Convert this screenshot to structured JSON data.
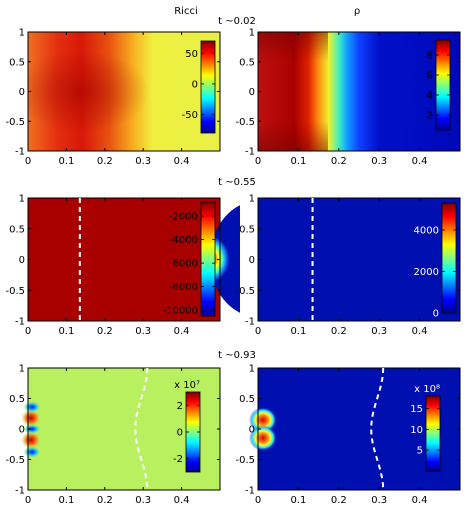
{
  "chart_data": {
    "type": "heatmap",
    "column_titles": [
      "Ricci",
      "ρ"
    ],
    "time_labels": [
      "t ~0.02",
      "t ~0.55",
      "t ~0.93"
    ],
    "colormap": "jet",
    "xlim": [
      0,
      0.5
    ],
    "ylim": [
      -1,
      1
    ],
    "x_ticks": [
      0,
      0.1,
      0.2,
      0.3,
      0.4
    ],
    "y_ticks": [
      -1,
      -0.5,
      0,
      0.5,
      1
    ],
    "panels": [
      {
        "id": "ricci-t1",
        "title": "Ricci",
        "field": "Ricci",
        "colorbar": {
          "min": -80,
          "max": 70,
          "ticks": [
            50,
            0,
            -50
          ],
          "tick_labels": [
            "50",
            "0",
            "-50"
          ],
          "scale_label": "",
          "label_color": "#000000"
        },
        "boundary_line": null
      },
      {
        "id": "rho-t1",
        "title": "ρ",
        "field": "ρ",
        "colorbar": {
          "min": 0.5,
          "max": 9.5,
          "ticks": [
            8,
            6,
            4,
            2
          ],
          "tick_labels": [
            "8",
            "6",
            "4",
            "2"
          ],
          "scale_label": "",
          "label_color": "#000000"
        },
        "boundary_line": null
      },
      {
        "id": "ricci-t2",
        "title": "",
        "field": "Ricci",
        "colorbar": {
          "min": -10500,
          "max": -800,
          "ticks": [
            -2000,
            -4000,
            -6000,
            -8000,
            -10000
          ],
          "tick_labels": [
            "-2000",
            "-4000",
            "-6000",
            "-8000",
            "-10000"
          ],
          "scale_label": "",
          "label_color": "#000000"
        },
        "boundary_line": {
          "x": 0.135
        }
      },
      {
        "id": "rho-t2",
        "title": "",
        "field": "ρ",
        "colorbar": {
          "min": 0,
          "max": 5300,
          "ticks": [
            4000,
            2000,
            0
          ],
          "tick_labels": [
            "4000",
            "2000",
            "0"
          ],
          "scale_label": "",
          "label_color": "#ffffff"
        },
        "boundary_line": {
          "x": 0.135
        }
      },
      {
        "id": "ricci-t3",
        "title": "",
        "field": "Ricci",
        "colorbar": {
          "min": -3,
          "max": 3,
          "ticks": [
            2,
            0,
            -2
          ],
          "tick_labels": [
            "2",
            "0",
            "-2"
          ],
          "scale_label": "x 10⁷",
          "label_color": "#000000"
        },
        "boundary_line": {
          "x": 0.295,
          "wavy": true
        }
      },
      {
        "id": "rho-t3",
        "title": "",
        "field": "ρ",
        "colorbar": {
          "min": 0,
          "max": 18,
          "ticks": [
            15,
            10,
            5
          ],
          "tick_labels": [
            "15",
            "10",
            "5"
          ],
          "scale_label": "x 10⁸",
          "label_color": "#ffffff"
        },
        "boundary_line": {
          "x": 0.295,
          "wavy": true
        }
      }
    ]
  }
}
